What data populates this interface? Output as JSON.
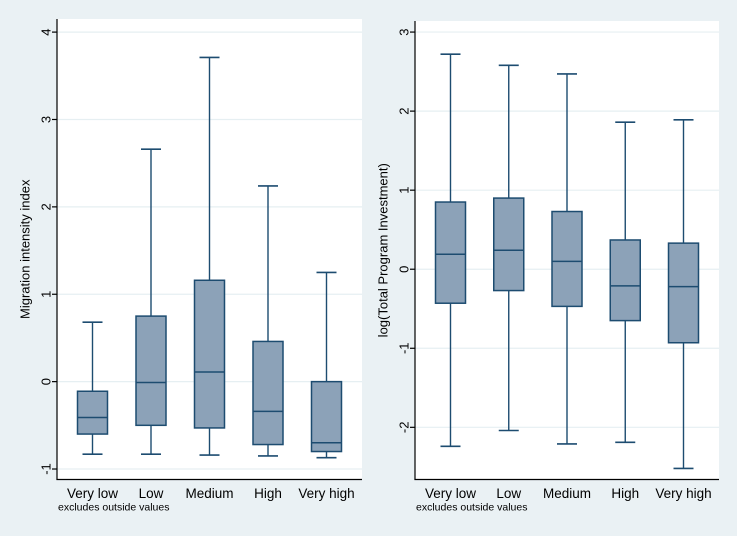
{
  "figure": {
    "background": "#EAF1F4",
    "plot_background": "#FFFFFF",
    "grid_color": "#E6EFF2",
    "axis_color": "#000000",
    "box_fill": "#8CA2B8",
    "box_stroke": "#1D4C70",
    "note": "excludes outside values"
  },
  "chart_data": [
    {
      "type": "box",
      "title": "",
      "ylabel": "Migration intensity index",
      "xlabel": "",
      "note": "excludes outside values",
      "categories": [
        "Very low",
        "Low",
        "Medium",
        "High",
        "Very high"
      ],
      "yticks": [
        4,
        3,
        2,
        1,
        0,
        -1
      ],
      "ylim": [
        -1.12,
        4.15
      ],
      "grid": true,
      "series": [
        {
          "category": "Very low",
          "whisker_low": -0.83,
          "q1": -0.6,
          "median": -0.41,
          "q3": -0.11,
          "whisker_high": 0.68
        },
        {
          "category": "Low",
          "whisker_low": -0.83,
          "q1": -0.5,
          "median": -0.01,
          "q3": 0.75,
          "whisker_high": 2.66
        },
        {
          "category": "Medium",
          "whisker_low": -0.84,
          "q1": -0.53,
          "median": 0.11,
          "q3": 1.16,
          "whisker_high": 3.71
        },
        {
          "category": "High",
          "whisker_low": -0.85,
          "q1": -0.72,
          "median": -0.34,
          "q3": 0.46,
          "whisker_high": 2.24
        },
        {
          "category": "Very high",
          "whisker_low": -0.87,
          "q1": -0.8,
          "median": -0.7,
          "q3": 0.0,
          "whisker_high": 1.25
        }
      ]
    },
    {
      "type": "box",
      "title": "",
      "ylabel": "log(Total Program Investment)",
      "xlabel": "",
      "note": "excludes outside values",
      "categories": [
        "Very low",
        "Low",
        "Medium",
        "High",
        "Very high"
      ],
      "yticks": [
        3,
        2,
        1,
        0,
        -1,
        -2
      ],
      "ylim": [
        -2.66,
        3.14
      ],
      "grid": true,
      "series": [
        {
          "category": "Very low",
          "whisker_low": -2.24,
          "q1": -0.43,
          "median": 0.19,
          "q3": 0.85,
          "whisker_high": 2.72
        },
        {
          "category": "Low",
          "whisker_low": -2.04,
          "q1": -0.27,
          "median": 0.24,
          "q3": 0.9,
          "whisker_high": 2.58
        },
        {
          "category": "Medium",
          "whisker_low": -2.21,
          "q1": -0.47,
          "median": 0.1,
          "q3": 0.73,
          "whisker_high": 2.47
        },
        {
          "category": "High",
          "whisker_low": -2.19,
          "q1": -0.65,
          "median": -0.21,
          "q3": 0.37,
          "whisker_high": 1.86
        },
        {
          "category": "Very high",
          "whisker_low": -2.52,
          "q1": -0.93,
          "median": -0.22,
          "q3": 0.33,
          "whisker_high": 1.89
        }
      ]
    }
  ]
}
